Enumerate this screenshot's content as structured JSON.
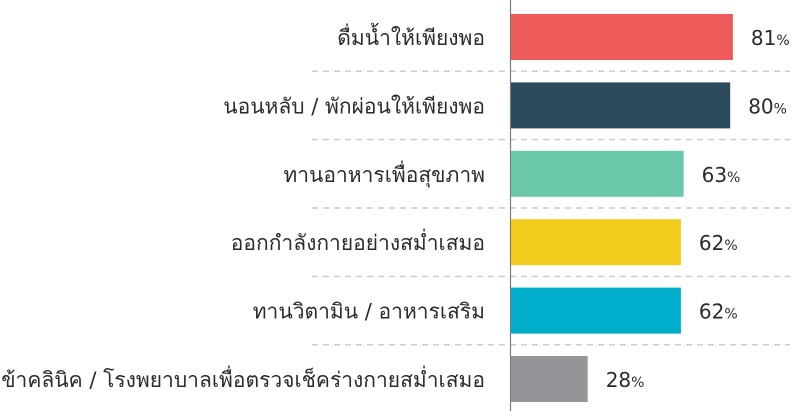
{
  "chart_data": {
    "type": "bar",
    "orientation": "horizontal",
    "categories": [
      "ดื่มน้ำให้เพียงพอ",
      "นอนหลับ / พักผ่อนให้เพียงพอ",
      "ทานอาหารเพื่อสุขภาพ",
      "ออกกำลังกายอย่างสม่ำเสมอ",
      "ทานวิตามิน / อาหารเสริม",
      "เข้าคลินิค / โรงพยาบาลเพื่อตรวจเช็คร่างกายสม่ำเสมอ"
    ],
    "values": [
      81,
      80,
      63,
      62,
      62,
      28
    ],
    "value_suffix": "%",
    "colors": [
      "#ef5a5a",
      "#2b4a5c",
      "#6cc8ab",
      "#f2cb1d",
      "#00aecb",
      "#939598"
    ],
    "xlim": [
      0,
      100
    ],
    "grid": "dashed separators between rows",
    "title": "",
    "xlabel": "",
    "ylabel": ""
  }
}
